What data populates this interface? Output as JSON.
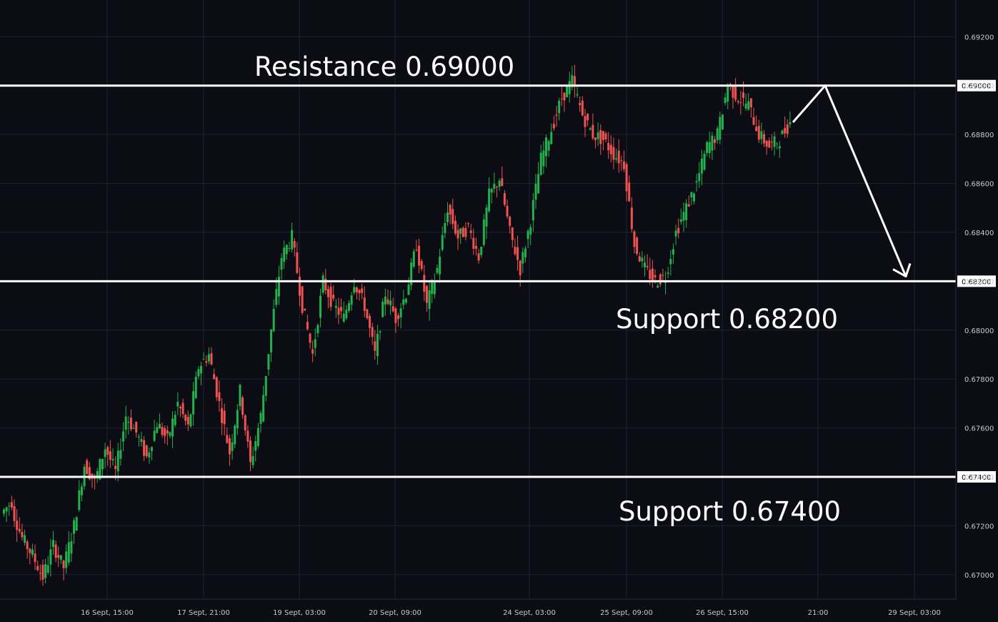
{
  "colors": {
    "background": "#0c0d14",
    "grid": "#1f2130",
    "up": "#22b14c",
    "down": "#ef5350",
    "level_line": "#ffffff",
    "axis_text": "#c8c9cc"
  },
  "chart_data": {
    "type": "candlestick",
    "title": "",
    "xlabel": "",
    "ylabel": "",
    "ylim": [
      0.669,
      0.6935
    ],
    "y_ticks": [
      "0.67000",
      "0.67200",
      "0.67400",
      "0.67600",
      "0.67800",
      "0.68000",
      "0.68200",
      "0.68400",
      "0.68600",
      "0.68800",
      "0.69000",
      "0.69200"
    ],
    "x_ticks": [
      "16 Sept, 15:00",
      "17 Sept, 21:00",
      "19 Sept, 03:00",
      "20 Sept, 09:00",
      "24 Sept, 03:00",
      "25 Sept, 09:00",
      "26 Sept, 15:00",
      "21:00",
      "29 Sept, 03:00"
    ],
    "grid": true,
    "levels": [
      {
        "label": "Resistance 0.69000",
        "value": 0.69,
        "price_box": "0.69000"
      },
      {
        "label": "Support 0.68200",
        "value": 0.682,
        "price_box": "0.68200"
      },
      {
        "label": "Support 0.67400",
        "value": 0.674,
        "price_box": "0.67400"
      }
    ],
    "price_path": [
      [
        0.6725,
        0.673
      ],
      [
        0.6727,
        0.6715
      ],
      [
        0.6715,
        0.6708
      ],
      [
        0.6708,
        0.6699
      ],
      [
        0.6699,
        0.6712
      ],
      [
        0.6712,
        0.6703
      ],
      [
        0.6703,
        0.672
      ],
      [
        0.672,
        0.6745
      ],
      [
        0.6745,
        0.6738
      ],
      [
        0.6738,
        0.6752
      ],
      [
        0.6752,
        0.6742
      ],
      [
        0.6742,
        0.6765
      ],
      [
        0.6765,
        0.6758
      ],
      [
        0.6758,
        0.6748
      ],
      [
        0.6748,
        0.6762
      ],
      [
        0.6762,
        0.6755
      ],
      [
        0.6755,
        0.677
      ],
      [
        0.677,
        0.676
      ],
      [
        0.676,
        0.6785
      ],
      [
        0.6785,
        0.679
      ],
      [
        0.679,
        0.677
      ],
      [
        0.677,
        0.675
      ],
      [
        0.675,
        0.6775
      ],
      [
        0.6775,
        0.6745
      ],
      [
        0.6745,
        0.6765
      ],
      [
        0.6765,
        0.68
      ],
      [
        0.68,
        0.683
      ],
      [
        0.683,
        0.6838
      ],
      [
        0.6838,
        0.681
      ],
      [
        0.681,
        0.679
      ],
      [
        0.679,
        0.682
      ],
      [
        0.682,
        0.681
      ],
      [
        0.681,
        0.6805
      ],
      [
        0.6805,
        0.682
      ],
      [
        0.682,
        0.681
      ],
      [
        0.681,
        0.679
      ],
      [
        0.679,
        0.6815
      ],
      [
        0.6815,
        0.6805
      ],
      [
        0.6805,
        0.6815
      ],
      [
        0.6815,
        0.6835
      ],
      [
        0.6835,
        0.681
      ],
      [
        0.681,
        0.6825
      ],
      [
        0.6825,
        0.685
      ],
      [
        0.685,
        0.6838
      ],
      [
        0.6838,
        0.6842
      ],
      [
        0.6842,
        0.683
      ],
      [
        0.683,
        0.6855
      ],
      [
        0.6855,
        0.6862
      ],
      [
        0.6862,
        0.684
      ],
      [
        0.684,
        0.6825
      ],
      [
        0.6825,
        0.6845
      ],
      [
        0.6845,
        0.687
      ],
      [
        0.687,
        0.6882
      ],
      [
        0.6882,
        0.6895
      ],
      [
        0.6895,
        0.6902
      ],
      [
        0.6902,
        0.6888
      ],
      [
        0.6888,
        0.688
      ],
      [
        0.688,
        0.6878
      ],
      [
        0.6878,
        0.6872
      ],
      [
        0.6872,
        0.6868
      ],
      [
        0.6868,
        0.6835
      ],
      [
        0.6835,
        0.6825
      ],
      [
        0.6825,
        0.682
      ],
      [
        0.682,
        0.6822
      ],
      [
        0.6822,
        0.684
      ],
      [
        0.684,
        0.685
      ],
      [
        0.685,
        0.686
      ],
      [
        0.686,
        0.6875
      ],
      [
        0.6875,
        0.688
      ],
      [
        0.688,
        0.69
      ],
      [
        0.69,
        0.6895
      ],
      [
        0.6895,
        0.6892
      ],
      [
        0.6892,
        0.688
      ],
      [
        0.688,
        0.6875
      ],
      [
        0.6875,
        0.6878
      ],
      [
        0.6878,
        0.6885
      ]
    ],
    "annotations": {
      "projection": [
        "to resistance 0.69000",
        "down to support 0.68200"
      ]
    }
  }
}
